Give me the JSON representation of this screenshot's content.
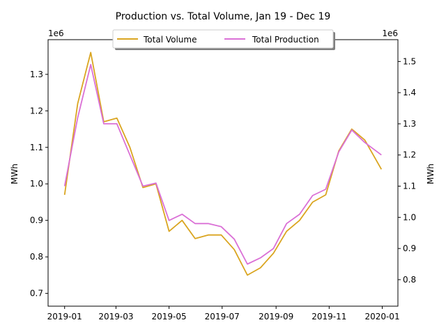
{
  "chart_data": {
    "type": "line",
    "title": "Production vs. Total Volume, Jan 19 - Dec 19",
    "xlabel": "",
    "y_left": {
      "label": "MWh",
      "offset_text": "1e6",
      "ylim": [
        0.665,
        1.395
      ],
      "ticks": [
        0.7,
        0.8,
        0.9,
        1.0,
        1.1,
        1.2,
        1.3
      ],
      "tick_labels": [
        "0.7",
        "0.8",
        "0.9",
        "1.0",
        "1.1",
        "1.2",
        "1.3"
      ],
      "color": "#daa520"
    },
    "y_right": {
      "label": "MWh",
      "offset_text": "1e6",
      "ylim": [
        0.715,
        1.57
      ],
      "ticks": [
        0.8,
        0.9,
        1.0,
        1.1,
        1.2,
        1.3,
        1.4,
        1.5
      ],
      "tick_labels": [
        "0.8",
        "0.9",
        "1.0",
        "1.1",
        "1.2",
        "1.3",
        "1.4",
        "1.5"
      ],
      "color": "#da70d6"
    },
    "x_axis": {
      "ticks": [
        "2019-01",
        "2019-03",
        "2019-05",
        "2019-07",
        "2019-09",
        "2019-11",
        "2020-01"
      ],
      "range": [
        "2018-12-13",
        "2020-01-19"
      ]
    },
    "legend": {
      "position": "top-center",
      "entries": [
        "Total Volume",
        "Total Production"
      ]
    },
    "grid": false,
    "series": [
      {
        "name": "Total Volume",
        "axis": "left",
        "color": "#daa520",
        "x": [
          "2019-01-01",
          "2019-01-16",
          "2019-01-31",
          "2019-02-15",
          "2019-03-02",
          "2019-03-17",
          "2019-04-01",
          "2019-04-16",
          "2019-05-01",
          "2019-05-16",
          "2019-05-31",
          "2019-06-15",
          "2019-06-30",
          "2019-07-15",
          "2019-07-30",
          "2019-08-14",
          "2019-08-29",
          "2019-09-13",
          "2019-09-28",
          "2019-10-13",
          "2019-10-28",
          "2019-11-12",
          "2019-11-27",
          "2019-12-12",
          "2019-12-31"
        ],
        "values": [
          0.97,
          1.22,
          1.36,
          1.17,
          1.18,
          1.1,
          0.99,
          1.0,
          0.87,
          0.9,
          0.85,
          0.86,
          0.86,
          0.82,
          0.75,
          0.77,
          0.81,
          0.87,
          0.9,
          0.95,
          0.97,
          1.09,
          1.15,
          1.12,
          1.04
        ]
      },
      {
        "name": "Total Production",
        "axis": "right",
        "color": "#da70d6",
        "x": [
          "2019-01-01",
          "2019-01-16",
          "2019-01-31",
          "2019-02-15",
          "2019-03-02",
          "2019-03-17",
          "2019-04-01",
          "2019-04-16",
          "2019-05-01",
          "2019-05-16",
          "2019-05-31",
          "2019-06-15",
          "2019-06-30",
          "2019-07-15",
          "2019-07-30",
          "2019-08-14",
          "2019-08-29",
          "2019-09-13",
          "2019-09-28",
          "2019-10-13",
          "2019-10-28",
          "2019-11-12",
          "2019-11-27",
          "2019-12-12",
          "2019-12-31"
        ],
        "values": [
          1.1,
          1.32,
          1.49,
          1.3,
          1.3,
          1.2,
          1.1,
          1.11,
          0.99,
          1.01,
          0.98,
          0.98,
          0.97,
          0.93,
          0.85,
          0.87,
          0.9,
          0.98,
          1.01,
          1.07,
          1.09,
          1.21,
          1.28,
          1.24,
          1.2
        ]
      }
    ]
  }
}
